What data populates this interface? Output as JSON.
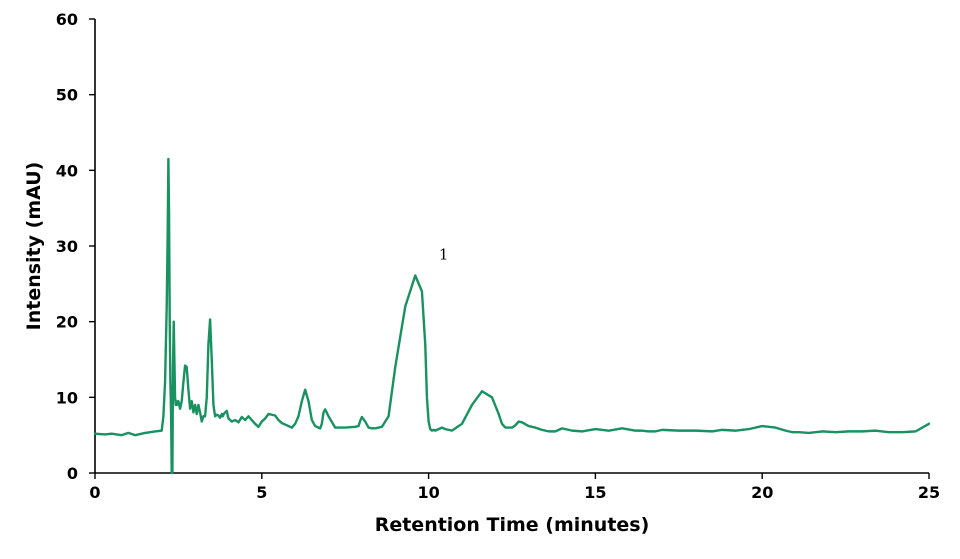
{
  "chart_data": {
    "type": "line",
    "title": "",
    "xlabel": "Retention Time (minutes)",
    "ylabel": "Intensity (mAU)",
    "xlim": [
      0,
      25
    ],
    "ylim": [
      0,
      60
    ],
    "x_ticks": [
      0,
      5,
      10,
      15,
      20,
      25
    ],
    "y_ticks": [
      0,
      10,
      20,
      30,
      40,
      50,
      60
    ],
    "x_tick_labels": [
      "0",
      "5",
      "10",
      "15",
      "20",
      "25"
    ],
    "y_tick_labels": [
      "0",
      "10",
      "20",
      "30",
      "40",
      "50",
      "60"
    ],
    "grid": false,
    "legend": "none",
    "series": [
      {
        "color": "#1a9160",
        "x": [
          0,
          0.3,
          0.5,
          0.8,
          1.0,
          1.2,
          1.5,
          1.8,
          2.0,
          2.05,
          2.1,
          2.15,
          2.18,
          2.2,
          2.22,
          2.24,
          2.26,
          2.28,
          2.3,
          2.32,
          2.33,
          2.34,
          2.36,
          2.38,
          2.4,
          2.42,
          2.44,
          2.46,
          2.5,
          2.55,
          2.6,
          2.65,
          2.7,
          2.75,
          2.8,
          2.85,
          2.9,
          2.95,
          3.0,
          3.05,
          3.1,
          3.15,
          3.2,
          3.25,
          3.3,
          3.35,
          3.4,
          3.45,
          3.5,
          3.55,
          3.6,
          3.65,
          3.7,
          3.75,
          3.8,
          3.83,
          3.86,
          3.9,
          3.95,
          4.0,
          4.1,
          4.2,
          4.3,
          4.4,
          4.5,
          4.6,
          4.7,
          4.8,
          4.9,
          5.0,
          5.1,
          5.2,
          5.3,
          5.4,
          5.5,
          5.6,
          5.7,
          5.8,
          5.9,
          6.0,
          6.1,
          6.2,
          6.3,
          6.4,
          6.5,
          6.6,
          6.7,
          6.75,
          6.8,
          6.85,
          6.9,
          7.0,
          7.2,
          7.5,
          7.8,
          7.9,
          7.95,
          8.0,
          8.1,
          8.2,
          8.3,
          8.4,
          8.5,
          8.6,
          8.8,
          9.0,
          9.3,
          9.6,
          9.8,
          9.9,
          9.95,
          10.0,
          10.05,
          10.1,
          10.15,
          10.2,
          10.3,
          10.4,
          10.5,
          10.7,
          11.0,
          11.3,
          11.6,
          11.9,
          12.1,
          12.2,
          12.3,
          12.4,
          12.5,
          12.6,
          12.7,
          12.8,
          13.0,
          13.2,
          13.4,
          13.6,
          13.8,
          14.0,
          14.3,
          14.6,
          15.0,
          15.4,
          15.8,
          16.2,
          16.4,
          16.6,
          16.8,
          17.0,
          17.5,
          18.0,
          18.5,
          18.8,
          19.2,
          19.6,
          20.0,
          20.4,
          20.7,
          20.9,
          21.1,
          21.4,
          21.8,
          22.2,
          22.6,
          23.0,
          23.4,
          23.8,
          24.2,
          24.6,
          24.8,
          25.0
        ],
        "values": [
          5.2,
          5.1,
          5.2,
          5.0,
          5.3,
          5.0,
          5.3,
          5.5,
          5.6,
          7.5,
          12.0,
          22.0,
          32.0,
          41.5,
          34.0,
          20.0,
          12.0,
          8.0,
          0.0,
          0.0,
          8.0,
          14.0,
          20.0,
          15.0,
          10.0,
          9.0,
          9.5,
          9.0,
          9.5,
          8.5,
          9.5,
          12.0,
          14.2,
          14.0,
          11.0,
          8.5,
          9.5,
          8.0,
          9.0,
          7.8,
          9.0,
          8.0,
          6.8,
          7.5,
          7.5,
          10.0,
          17.0,
          20.3,
          15.0,
          9.0,
          7.5,
          7.7,
          7.6,
          7.3,
          7.8,
          7.5,
          7.8,
          8.0,
          8.2,
          7.2,
          6.8,
          7.0,
          6.7,
          7.4,
          7.0,
          7.5,
          7.0,
          6.5,
          6.1,
          6.8,
          7.2,
          7.8,
          7.7,
          7.6,
          7.0,
          6.6,
          6.4,
          6.2,
          6.0,
          6.5,
          7.5,
          9.5,
          11.0,
          9.5,
          7.0,
          6.2,
          6.0,
          5.9,
          6.5,
          8.0,
          8.4,
          7.5,
          6.0,
          6.0,
          6.1,
          6.2,
          6.9,
          7.4,
          6.8,
          6.0,
          5.9,
          5.9,
          6.0,
          6.1,
          7.5,
          14.0,
          22.0,
          26.1,
          24.0,
          17.0,
          10.0,
          6.8,
          5.8,
          5.6,
          5.7,
          5.6,
          5.8,
          6.0,
          5.8,
          5.6,
          6.5,
          9.0,
          10.8,
          10.0,
          7.8,
          6.5,
          6.0,
          6.0,
          6.0,
          6.3,
          6.8,
          6.7,
          6.2,
          6.0,
          5.7,
          5.5,
          5.5,
          5.9,
          5.6,
          5.5,
          5.8,
          5.6,
          5.9,
          5.6,
          5.6,
          5.5,
          5.5,
          5.7,
          5.6,
          5.6,
          5.5,
          5.7,
          5.6,
          5.8,
          6.2,
          6.0,
          5.6,
          5.4,
          5.4,
          5.3,
          5.5,
          5.4,
          5.5,
          5.5,
          5.6,
          5.4,
          5.4,
          5.5,
          6.0,
          6.5
        ]
      }
    ],
    "annotations": [
      {
        "text": "1",
        "x": 10.45,
        "y": 28.2
      }
    ]
  }
}
